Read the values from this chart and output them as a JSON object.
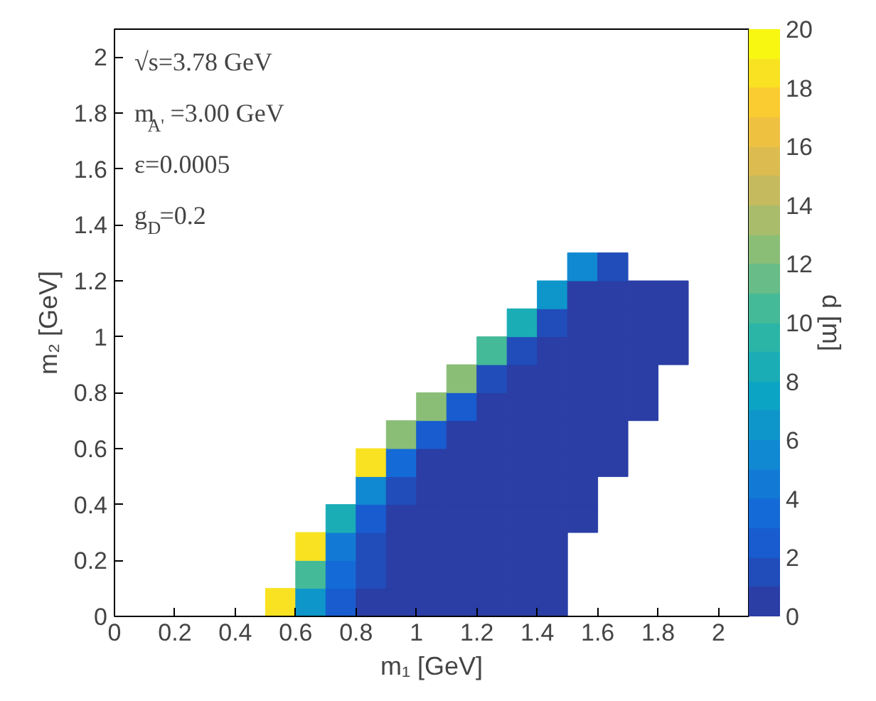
{
  "chart_data": {
    "type": "scatter",
    "marker": "square",
    "xlabel": "m₁ [GeV]",
    "ylabel": "m₂ [GeV]",
    "clabel": "d [m]",
    "xlim": [
      0,
      2.1
    ],
    "xticks": [
      0,
      0.2,
      0.4,
      0.6,
      0.8,
      1,
      1.2,
      1.4,
      1.6,
      1.8,
      2
    ],
    "ylim": [
      0,
      2.1
    ],
    "yticks": [
      0,
      0.2,
      0.4,
      0.6,
      0.8,
      1,
      1.2,
      1.4,
      1.6,
      1.8,
      2
    ],
    "clim": [
      0,
      20
    ],
    "cticks": [
      0,
      2,
      4,
      6,
      8,
      10,
      12,
      14,
      16,
      18,
      20
    ],
    "grid": false,
    "annotations": [
      "√s=3.78 GeV",
      "m$_{A'}$=3.00 GeV",
      "ε=0.0005",
      "g$_{D}$=0.2"
    ],
    "x": [
      0.55,
      0.65,
      0.75,
      0.85,
      0.95,
      1.05,
      1.15,
      1.25,
      1.35,
      1.45,
      0.65,
      0.75,
      0.85,
      0.95,
      1.05,
      1.15,
      1.25,
      1.35,
      1.45,
      0.65,
      0.75,
      0.85,
      0.95,
      1.05,
      1.15,
      1.25,
      1.35,
      1.45,
      0.75,
      0.85,
      0.95,
      1.05,
      1.15,
      1.25,
      1.35,
      1.45,
      1.55,
      0.85,
      0.95,
      1.05,
      1.15,
      1.25,
      1.35,
      1.45,
      1.55,
      0.85,
      0.95,
      1.05,
      1.15,
      1.25,
      1.35,
      1.45,
      1.55,
      1.65,
      0.95,
      1.05,
      1.15,
      1.25,
      1.35,
      1.45,
      1.55,
      1.65,
      1.05,
      1.15,
      1.25,
      1.35,
      1.45,
      1.55,
      1.65,
      1.75,
      1.15,
      1.25,
      1.35,
      1.45,
      1.55,
      1.65,
      1.75,
      1.25,
      1.35,
      1.45,
      1.55,
      1.65,
      1.75,
      1.85,
      1.35,
      1.45,
      1.55,
      1.65,
      1.75,
      1.85,
      1.45,
      1.55,
      1.65,
      1.75,
      1.85,
      1.55,
      1.65
    ],
    "values": [
      0.05,
      0.05,
      0.05,
      0.05,
      0.05,
      0.05,
      0.05,
      0.05,
      0.05,
      0.05,
      0.15,
      0.15,
      0.15,
      0.15,
      0.15,
      0.15,
      0.15,
      0.15,
      0.15,
      0.25,
      0.25,
      0.25,
      0.25,
      0.25,
      0.25,
      0.25,
      0.25,
      0.25,
      0.35,
      0.35,
      0.35,
      0.35,
      0.35,
      0.35,
      0.35,
      0.35,
      0.35,
      0.45,
      0.45,
      0.45,
      0.45,
      0.45,
      0.45,
      0.45,
      0.45,
      0.55,
      0.55,
      0.55,
      0.55,
      0.55,
      0.55,
      0.55,
      0.55,
      0.55,
      0.65,
      0.65,
      0.65,
      0.65,
      0.65,
      0.65,
      0.65,
      0.65,
      0.75,
      0.75,
      0.75,
      0.75,
      0.75,
      0.75,
      0.75,
      0.75,
      0.85,
      0.85,
      0.85,
      0.85,
      0.85,
      0.85,
      0.85,
      0.95,
      0.95,
      0.95,
      0.95,
      0.95,
      0.95,
      0.95,
      1.05,
      1.05,
      1.05,
      1.05,
      1.05,
      1.05,
      1.15,
      1.15,
      1.15,
      1.15,
      1.15,
      1.25,
      1.25
    ],
    "cvalues": [
      18,
      6,
      2,
      0.5,
      0.5,
      0.5,
      0.5,
      0.5,
      0.5,
      0.5,
      10,
      3,
      1,
      0.5,
      0.5,
      0.5,
      0.5,
      0.5,
      0.5,
      18,
      4,
      1.5,
      0.5,
      0.5,
      0.5,
      0.5,
      0.5,
      0.5,
      8,
      2,
      0.5,
      0.5,
      0.5,
      0.5,
      0.5,
      0.5,
      0.5,
      5,
      1.5,
      0.5,
      0.5,
      0.5,
      0.5,
      0.5,
      0.5,
      18,
      3,
      0.5,
      0.5,
      0.5,
      0.5,
      0.5,
      0.5,
      0.5,
      12,
      2,
      0.5,
      0.5,
      0.5,
      0.5,
      0.5,
      0.5,
      12,
      2,
      0.5,
      0.5,
      0.5,
      0.5,
      0.5,
      0.5,
      12,
      1.5,
      0.5,
      0.5,
      0.5,
      0.5,
      0.5,
      10,
      1.5,
      0.5,
      0.5,
      0.5,
      0.5,
      0.5,
      8,
      1,
      0.5,
      0.5,
      0.5,
      0.5,
      6,
      0.5,
      0.5,
      0.5,
      0.5,
      5,
      1
    ]
  }
}
